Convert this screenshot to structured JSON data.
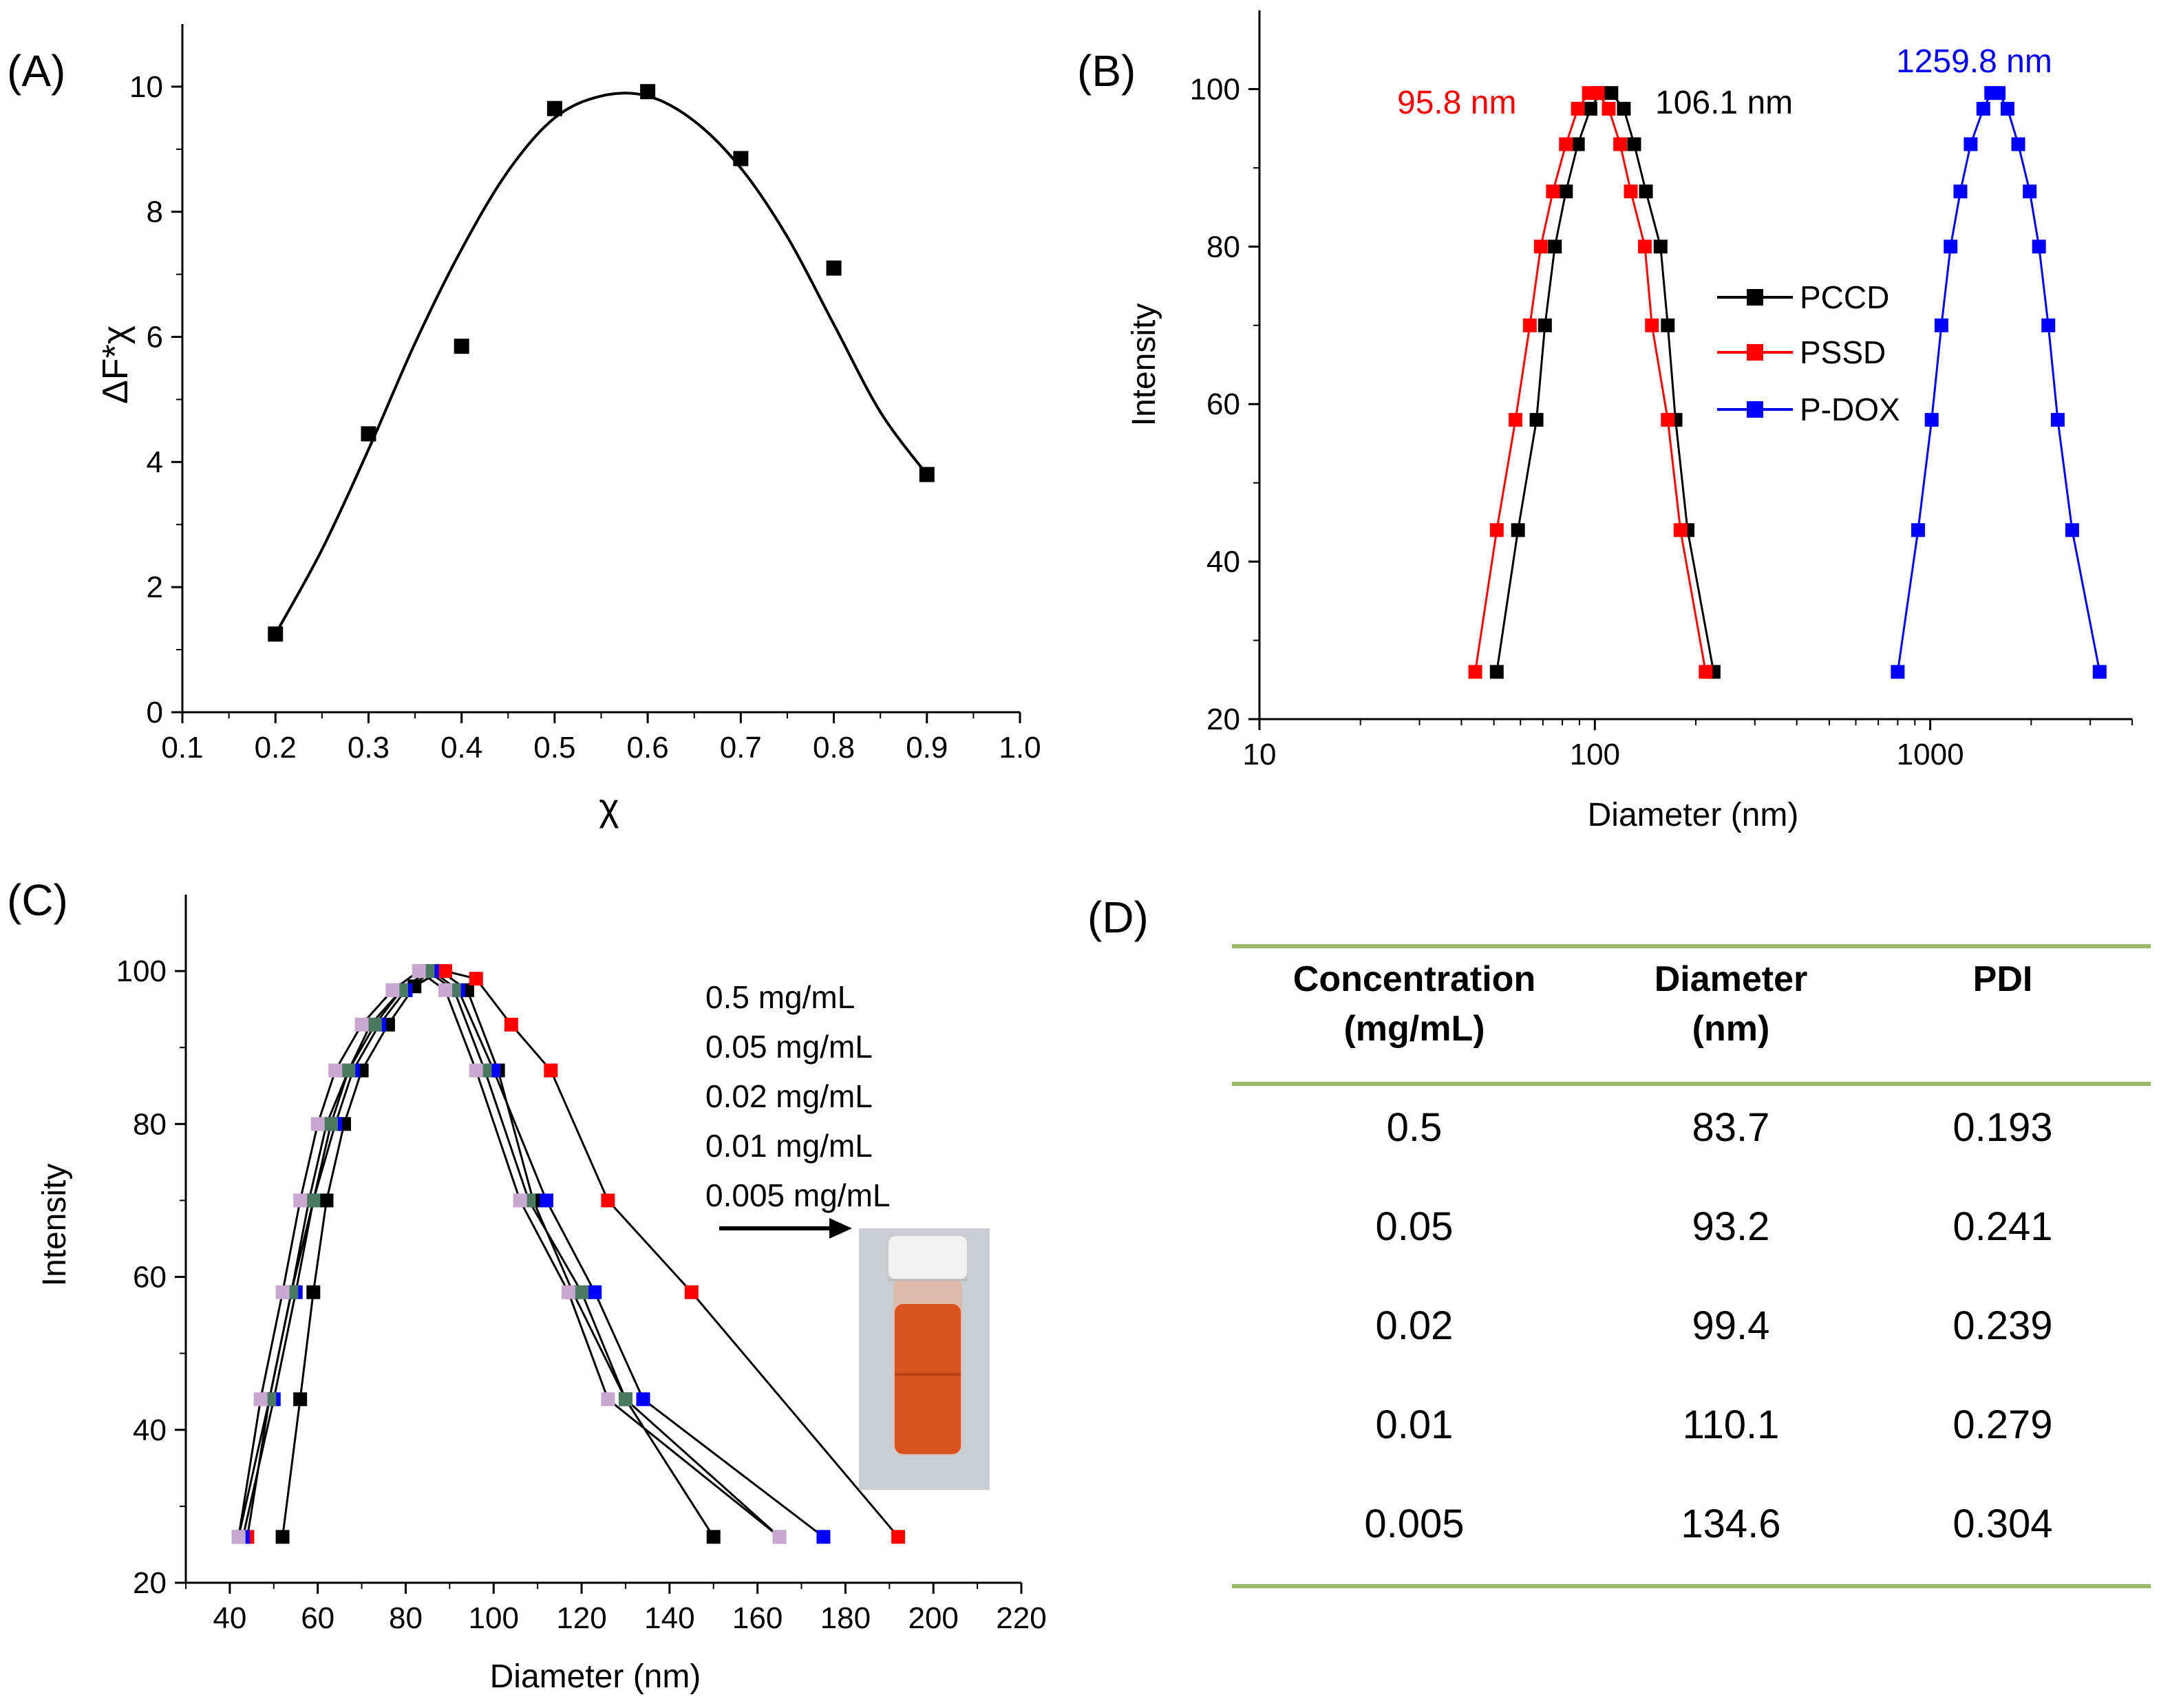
{
  "chart_data": [
    {
      "panel": "(A)",
      "type": "scatter",
      "xlabel": "χ",
      "ylabel": "ΔF*χ",
      "xlim": [
        0.1,
        1.0
      ],
      "ylim": [
        0,
        11
      ],
      "xticks": [
        0.1,
        0.2,
        0.3,
        0.4,
        0.5,
        0.6,
        0.7,
        0.8,
        0.9,
        1.0
      ],
      "xtick_labels": [
        "0.1",
        "0.2",
        "0.3",
        "0.4",
        "0.5",
        "0.6",
        "0.7",
        "0.8",
        "0.9",
        "1.0"
      ],
      "yticks": [
        0,
        2,
        4,
        6,
        8,
        10
      ],
      "ytick_labels": [
        "0",
        "2",
        "4",
        "6",
        "8",
        "10"
      ],
      "points": [
        {
          "x": 0.2,
          "y": 1.25
        },
        {
          "x": 0.3,
          "y": 4.45
        },
        {
          "x": 0.4,
          "y": 5.85
        },
        {
          "x": 0.5,
          "y": 9.65
        },
        {
          "x": 0.6,
          "y": 9.92
        },
        {
          "x": 0.7,
          "y": 8.85
        },
        {
          "x": 0.8,
          "y": 7.1
        },
        {
          "x": 0.9,
          "y": 3.8
        }
      ],
      "fit": {
        "x": [
          0.2,
          0.25,
          0.3,
          0.35,
          0.4,
          0.45,
          0.5,
          0.55,
          0.6,
          0.65,
          0.7,
          0.75,
          0.8,
          0.85,
          0.9
        ],
        "y": [
          1.25,
          2.6,
          4.2,
          5.9,
          7.4,
          8.65,
          9.5,
          9.85,
          9.85,
          9.45,
          8.7,
          7.6,
          6.2,
          4.8,
          3.8
        ]
      },
      "color": "#000000"
    },
    {
      "panel": "(B)",
      "type": "line",
      "xscale": "log",
      "xlabel": "Diameter (nm)",
      "ylabel": "Intensity",
      "xlim": [
        10,
        4000
      ],
      "ylim": [
        20,
        110
      ],
      "xticks": [
        10,
        100,
        1000
      ],
      "xtick_labels": [
        "10",
        "100",
        "1000"
      ],
      "yticks": [
        20,
        40,
        60,
        80,
        100
      ],
      "ytick_labels": [
        "20",
        "40",
        "60",
        "80",
        "100"
      ],
      "series": [
        {
          "name": "PCCD",
          "color": "#000000",
          "x": [
            51,
            59,
            67,
            71,
            76,
            82,
            89,
            97,
            104,
            112,
            122,
            131,
            142,
            157,
            165,
            174,
            189,
            226
          ],
          "y": [
            26,
            44,
            58,
            70,
            80,
            87,
            93,
            97.5,
            99.5,
            99.5,
            97.5,
            93,
            87,
            80,
            70,
            58,
            44,
            26
          ]
        },
        {
          "name": "PSSD",
          "color": "#ff0000",
          "x": [
            44,
            51,
            58,
            64,
            69,
            75,
            82,
            89,
            96,
            102,
            110,
            119,
            128,
            141,
            148,
            165,
            180,
            214
          ],
          "y": [
            26,
            44,
            58,
            70,
            80,
            87,
            93,
            97.5,
            99.5,
            99.5,
            97.5,
            93,
            87,
            80,
            70,
            58,
            44,
            26
          ]
        },
        {
          "name": "P-DOX",
          "color": "#0000ff",
          "x": [
            800,
            920,
            1010,
            1080,
            1150,
            1230,
            1320,
            1440,
            1520,
            1600,
            1700,
            1830,
            1980,
            2110,
            2250,
            2400,
            2650,
            3200
          ],
          "y": [
            26,
            44,
            58,
            70,
            80,
            87,
            93,
            97.5,
            99.5,
            99.5,
            97.5,
            93,
            87,
            80,
            70,
            58,
            44,
            26
          ]
        }
      ],
      "annotations": [
        {
          "text": "95.8 nm",
          "color": "#ff0000"
        },
        {
          "text": "106.1 nm",
          "color": "#000000"
        },
        {
          "text": "1259.8 nm",
          "color": "#0000ff"
        }
      ],
      "legend": "center-right"
    },
    {
      "panel": "(C)",
      "type": "line",
      "xlabel": "Diameter (nm)",
      "ylabel": "Intensity",
      "xlim": [
        30,
        220
      ],
      "ylim": [
        20,
        110
      ],
      "xticks": [
        40,
        60,
        80,
        100,
        120,
        140,
        160,
        180,
        200,
        220
      ],
      "xtick_labels": [
        "40",
        "60",
        "80",
        "100",
        "120",
        "140",
        "160",
        "180",
        "200",
        "220"
      ],
      "yticks": [
        20,
        40,
        60,
        80,
        100
      ],
      "ytick_labels": [
        "20",
        "40",
        "60",
        "80",
        "100"
      ],
      "legend_labels": [
        "0.5 mg/mL",
        "0.05 mg/mL",
        "0.02 mg/mL",
        "0.01 mg/mL",
        "0.005 mg/mL"
      ],
      "series": [
        {
          "name": "0.5 mg/mL",
          "color": "#000000",
          "x": [
            52,
            56,
            59,
            62,
            66,
            70,
            76,
            82,
            88,
            94,
            101,
            109,
            118,
            130,
            150
          ],
          "y": [
            26,
            44,
            58,
            70,
            80,
            87,
            93,
            98,
            100,
            97.5,
            87,
            70,
            58,
            44,
            26
          ]
        },
        {
          "name": "0.05 mg/mL",
          "color": "#ff0000",
          "x": [
            44,
            49,
            54,
            58,
            62,
            67,
            72,
            79,
            89,
            96,
            104,
            113,
            126,
            145,
            192
          ],
          "y": [
            26,
            44,
            58,
            70,
            80,
            87,
            93,
            97.5,
            100,
            99,
            93,
            87,
            70,
            58,
            26
          ]
        },
        {
          "name": "0.02 mg/mL",
          "color": "#0000ff",
          "x": [
            43,
            50,
            55,
            59,
            64,
            68,
            74,
            80,
            86,
            92,
            100,
            112,
            123,
            134,
            175
          ],
          "y": [
            26,
            44,
            58,
            70,
            80,
            87,
            93,
            97.5,
            100,
            97.5,
            87,
            70,
            58,
            44,
            26
          ]
        },
        {
          "name": "0.01 mg/mL",
          "color": "#4a7a60",
          "x": [
            42,
            49,
            54,
            59,
            63,
            67,
            73,
            79,
            85,
            91,
            98,
            108,
            120,
            130,
            165
          ],
          "y": [
            26,
            44,
            58,
            70,
            80,
            87,
            93,
            97.5,
            100,
            97.5,
            87,
            70,
            58,
            44,
            26
          ]
        },
        {
          "name": "0.005 mg/mL",
          "color": "#c8a8d0",
          "x": [
            42,
            47,
            52,
            56,
            60,
            64,
            70,
            77,
            83,
            89,
            96,
            106,
            117,
            126,
            165
          ],
          "y": [
            26,
            44,
            58,
            70,
            80,
            87,
            93,
            97.5,
            100,
            97.5,
            87,
            70,
            58,
            44,
            26
          ]
        }
      ]
    }
  ],
  "panel_labels": {
    "a": "(A)",
    "b": "(B)",
    "c": "(C)",
    "d": "(D)"
  },
  "table": {
    "headers": [
      {
        "line1": "Concentration",
        "line2": "(mg/mL)"
      },
      {
        "line1": "Diameter",
        "line2": "(nm)"
      },
      {
        "line1": "PDI",
        "line2": ""
      }
    ],
    "rows": [
      [
        "0.5",
        "83.7",
        "0.193"
      ],
      [
        "0.05",
        "93.2",
        "0.241"
      ],
      [
        "0.02",
        "99.4",
        "0.239"
      ],
      [
        "0.01",
        "110.1",
        "0.279"
      ],
      [
        "0.005",
        "134.6",
        "0.304"
      ]
    ],
    "rule_color": "#9ab86a"
  },
  "photo": {
    "liquid_color": "#d9531e",
    "cap_color": "#f2f2f2"
  }
}
